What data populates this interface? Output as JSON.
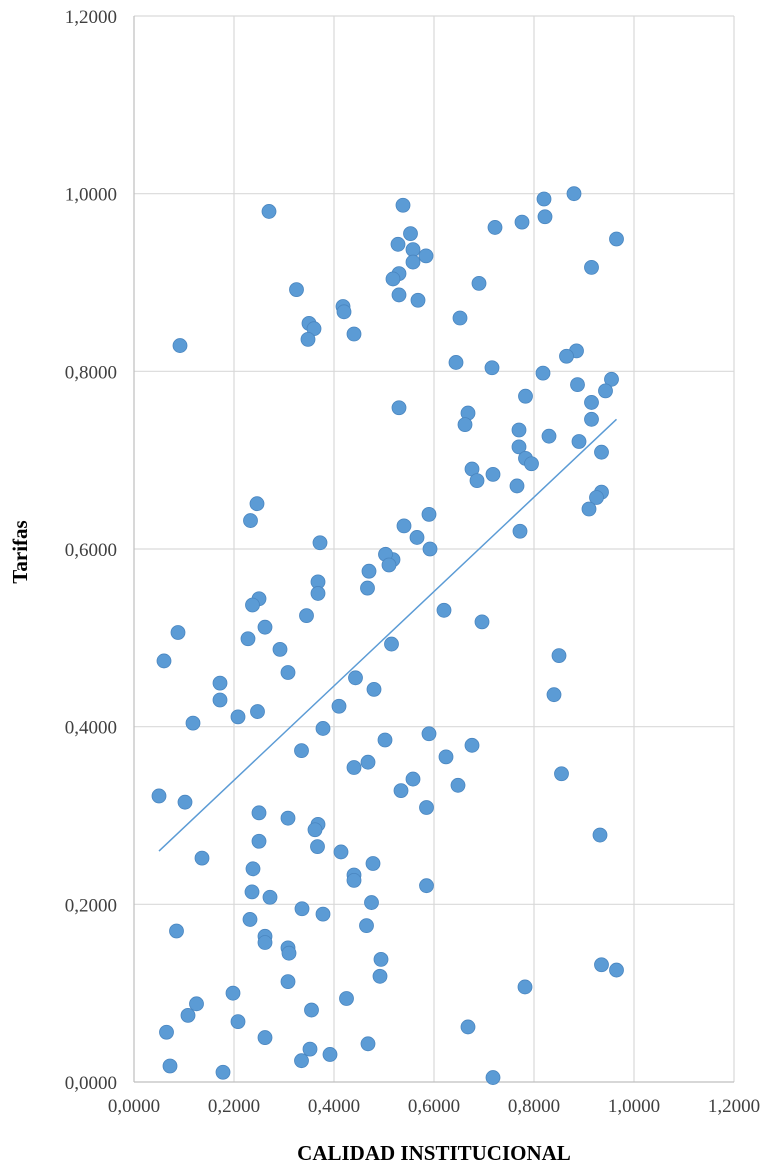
{
  "chart_data": {
    "type": "scatter",
    "xlabel": "CALIDAD INSTITUCIONAL",
    "ylabel": "Tarifas",
    "xlim": [
      0,
      1.2
    ],
    "ylim": [
      0,
      1.2
    ],
    "xticks": [
      0,
      0.2,
      0.4,
      0.6,
      0.8,
      1.0,
      1.2
    ],
    "yticks": [
      0,
      0.2,
      0.4,
      0.6,
      0.8,
      1.0,
      1.2
    ],
    "xtick_labels": [
      "0,0000",
      "0,2000",
      "0,4000",
      "0,6000",
      "0,8000",
      "1,0000",
      "1,2000"
    ],
    "ytick_labels": [
      "0,0000",
      "0,2000",
      "0,4000",
      "0,6000",
      "0,8000",
      "1,0000",
      "1,2000"
    ],
    "grid": true,
    "legend": "none",
    "colors": {
      "points": "#5b9bd5",
      "points_edge": "#4a86c0",
      "trendline": "#5b9bd5"
    },
    "trendline": {
      "x": [
        0.05,
        0.965
      ],
      "y": [
        0.26,
        0.746
      ]
    },
    "series": [
      {
        "x": [
          0.27,
          0.538,
          0.528,
          0.553,
          0.558,
          0.584,
          0.558,
          0.53,
          0.518,
          0.53,
          0.568,
          0.325,
          0.418,
          0.42,
          0.35,
          0.36,
          0.348,
          0.44,
          0.722,
          0.776,
          0.82,
          0.88,
          0.822,
          0.965,
          0.915,
          0.69,
          0.652,
          0.092,
          0.644,
          0.716,
          0.818,
          0.885,
          0.865,
          0.887,
          0.955,
          0.943,
          0.915,
          0.783,
          0.53,
          0.668,
          0.662,
          0.77,
          0.915,
          0.83,
          0.89,
          0.77,
          0.783,
          0.795,
          0.935,
          0.676,
          0.718,
          0.686,
          0.766,
          0.935,
          0.925,
          0.91,
          0.246,
          0.233,
          0.59,
          0.54,
          0.372,
          0.518,
          0.566,
          0.503,
          0.592,
          0.51,
          0.47,
          0.368,
          0.368,
          0.62,
          0.25,
          0.237,
          0.345,
          0.467,
          0.772,
          0.262,
          0.06,
          0.088,
          0.228,
          0.292,
          0.172,
          0.308,
          0.515,
          0.85,
          0.696,
          0.443,
          0.172,
          0.48,
          0.118,
          0.208,
          0.247,
          0.84,
          0.41,
          0.378,
          0.502,
          0.59,
          0.335,
          0.676,
          0.624,
          0.468,
          0.44,
          0.855,
          0.558,
          0.534,
          0.648,
          0.05,
          0.102,
          0.585,
          0.25,
          0.308,
          0.368,
          0.362,
          0.932,
          0.367,
          0.25,
          0.414,
          0.136,
          0.478,
          0.238,
          0.44,
          0.44,
          0.236,
          0.585,
          0.272,
          0.475,
          0.336,
          0.378,
          0.232,
          0.465,
          0.085,
          0.262,
          0.308,
          0.262,
          0.31,
          0.494,
          0.935,
          0.965,
          0.492,
          0.308,
          0.782,
          0.198,
          0.125,
          0.425,
          0.355,
          0.108,
          0.208,
          0.065,
          0.668,
          0.262,
          0.468,
          0.352,
          0.392,
          0.335,
          0.072,
          0.178,
          0.718
        ],
        "y": [
          0.98,
          0.987,
          0.943,
          0.955,
          0.937,
          0.93,
          0.923,
          0.91,
          0.904,
          0.886,
          0.88,
          0.892,
          0.873,
          0.867,
          0.854,
          0.848,
          0.836,
          0.842,
          0.962,
          0.968,
          0.994,
          1.0,
          0.974,
          0.949,
          0.917,
          0.899,
          0.86,
          0.829,
          0.81,
          0.804,
          0.798,
          0.823,
          0.817,
          0.785,
          0.791,
          0.778,
          0.765,
          0.772,
          0.759,
          0.753,
          0.74,
          0.734,
          0.746,
          0.727,
          0.721,
          0.715,
          0.702,
          0.696,
          0.709,
          0.69,
          0.684,
          0.677,
          0.671,
          0.664,
          0.658,
          0.645,
          0.651,
          0.632,
          0.639,
          0.626,
          0.607,
          0.588,
          0.613,
          0.594,
          0.6,
          0.582,
          0.575,
          0.563,
          0.55,
          0.531,
          0.544,
          0.537,
          0.525,
          0.556,
          0.62,
          0.512,
          0.474,
          0.506,
          0.499,
          0.487,
          0.449,
          0.461,
          0.493,
          0.48,
          0.518,
          0.455,
          0.43,
          0.442,
          0.404,
          0.411,
          0.417,
          0.436,
          0.423,
          0.398,
          0.385,
          0.392,
          0.373,
          0.379,
          0.366,
          0.36,
          0.354,
          0.347,
          0.341,
          0.328,
          0.334,
          0.322,
          0.315,
          0.309,
          0.303,
          0.297,
          0.29,
          0.284,
          0.278,
          0.265,
          0.271,
          0.259,
          0.252,
          0.246,
          0.24,
          0.233,
          0.227,
          0.214,
          0.221,
          0.208,
          0.202,
          0.195,
          0.189,
          0.183,
          0.176,
          0.17,
          0.164,
          0.151,
          0.157,
          0.145,
          0.138,
          0.132,
          0.126,
          0.119,
          0.113,
          0.107,
          0.1,
          0.088,
          0.094,
          0.081,
          0.075,
          0.068,
          0.056,
          0.062,
          0.05,
          0.043,
          0.037,
          0.031,
          0.024,
          0.018,
          0.011,
          0.005
        ]
      }
    ]
  }
}
